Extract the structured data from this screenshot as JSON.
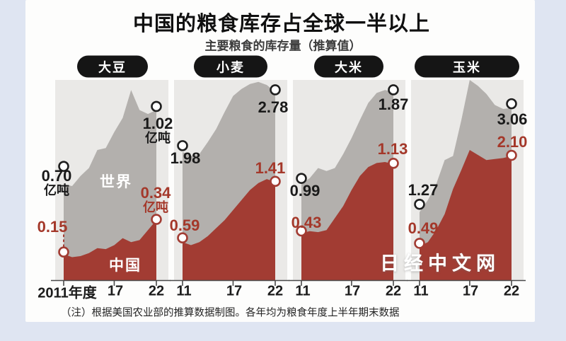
{
  "colors": {
    "outer_bg": "#dfe5f2",
    "card_bg": "#fdfdfc",
    "plot_bg": "#eae9e7",
    "world_area": "#b3b0ad",
    "china_area": "#a23c33",
    "china_text": "#a4382a",
    "axis": "#4a4a4a",
    "marker_fill": "#ffffff"
  },
  "watermark": {
    "text": "日经中文网"
  },
  "chart_data": {
    "type": "area",
    "title": "中国的粮食库存占全球一半以上",
    "subtitle": "主要粮食的库存量（推算值）",
    "note": "（注）根据美国农业部的推算数据制图。各年均为粮食年度上半年期末数据",
    "unit": "亿吨",
    "years": [
      2011,
      2012,
      2013,
      2014,
      2015,
      2016,
      2017,
      2018,
      2019,
      2020,
      2021,
      2022
    ],
    "legend": {
      "world": "世界",
      "china": "中国"
    },
    "shape_units": "shape arrays are drawn heights as fraction of panel plot height (0-1), estimated from pixels; labeled values are in 亿吨",
    "panels": [
      {
        "id": "soybean",
        "label": "大豆",
        "x_ticks": [
          "2011年度",
          "17",
          "22"
        ],
        "world": {
          "name": "世界",
          "start": {
            "value": "0.70",
            "unit": "亿吨"
          },
          "end": {
            "value": "1.02",
            "unit": "亿吨"
          },
          "shape": [
            0.48,
            0.47,
            0.52,
            0.56,
            0.65,
            0.66,
            0.74,
            0.81,
            0.95,
            0.85,
            0.83,
            0.85
          ]
        },
        "china": {
          "name": "中国",
          "start": {
            "value": "0.15"
          },
          "end": {
            "value": "0.34",
            "unit": "亿吨"
          },
          "shape": [
            0.13,
            0.115,
            0.12,
            0.135,
            0.16,
            0.155,
            0.175,
            0.21,
            0.19,
            0.2,
            0.25,
            0.3
          ]
        }
      },
      {
        "id": "wheat",
        "label": "小麦",
        "x_ticks": [
          "11",
          "17",
          "22"
        ],
        "world": {
          "start": {
            "value": "1.98"
          },
          "end": {
            "value": "2.78"
          },
          "shape": [
            0.64,
            0.62,
            0.63,
            0.69,
            0.755,
            0.84,
            0.92,
            0.955,
            0.98,
            0.99,
            0.975,
            0.94
          ]
        },
        "china": {
          "start": {
            "value": "0.59"
          },
          "end": {
            "value": "1.41"
          },
          "shape": [
            0.19,
            0.175,
            0.19,
            0.22,
            0.26,
            0.3,
            0.35,
            0.4,
            0.45,
            0.485,
            0.505,
            0.49
          ]
        }
      },
      {
        "id": "rice",
        "label": "大米",
        "x_ticks": [
          "11",
          "17",
          "22"
        ],
        "world": {
          "start": {
            "value": "0.99"
          },
          "end": {
            "value": "1.87"
          },
          "shape": [
            0.48,
            0.51,
            0.56,
            0.545,
            0.56,
            0.63,
            0.71,
            0.8,
            0.885,
            0.935,
            0.95,
            0.94
          ]
        },
        "china": {
          "start": {
            "value": "0.43"
          },
          "end": {
            "value": "1.13"
          },
          "shape": [
            0.235,
            0.245,
            0.24,
            0.25,
            0.31,
            0.37,
            0.45,
            0.52,
            0.565,
            0.585,
            0.59,
            0.58
          ]
        }
      },
      {
        "id": "corn",
        "label": "玉米",
        "x_ticks": [
          "11",
          "17",
          "22"
        ],
        "world": {
          "start": {
            "value": "1.27"
          },
          "end": {
            "value": "3.06"
          },
          "shape": [
            0.34,
            0.4,
            0.48,
            0.6,
            0.62,
            0.8,
            1.0,
            0.97,
            0.93,
            0.875,
            0.855,
            0.86
          ]
        },
        "china": {
          "start": {
            "value": "0.49"
          },
          "end": {
            "value": "2.10"
          },
          "shape": [
            0.17,
            0.19,
            0.25,
            0.33,
            0.455,
            0.55,
            0.65,
            0.625,
            0.6,
            0.605,
            0.61,
            0.62
          ]
        }
      }
    ]
  }
}
